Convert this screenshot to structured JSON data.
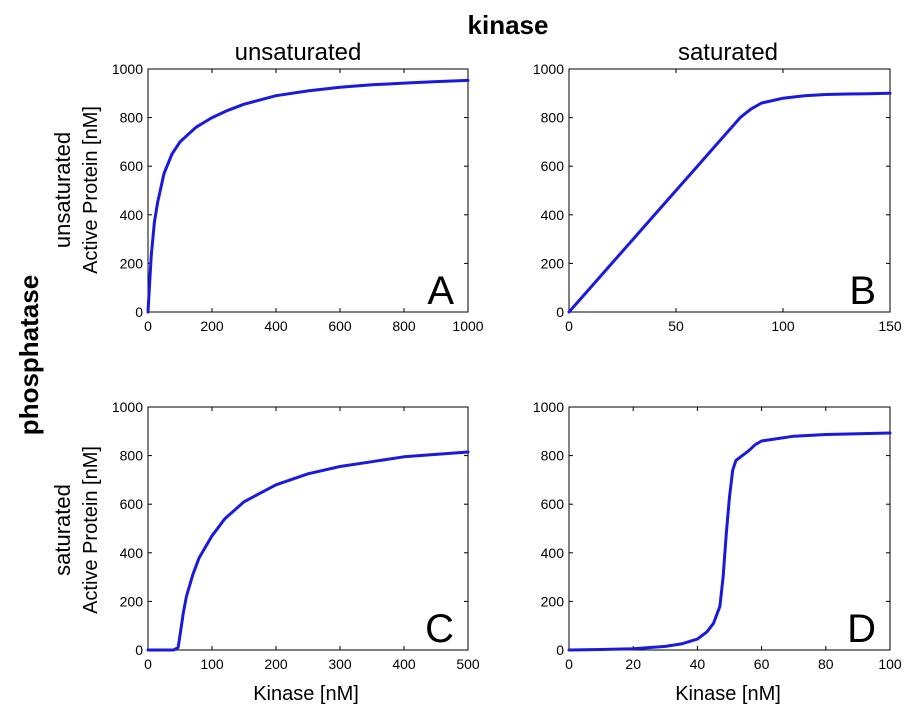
{
  "figure": {
    "col_header": "kinase",
    "row_header": "phosphatase",
    "col_labels": [
      "unsaturated",
      "saturated"
    ],
    "row_labels": [
      "unsaturated",
      "saturated"
    ],
    "ylabel": "Active Protein [nM]",
    "xlabel": "Kinase [nM]"
  },
  "colors": {
    "line": "#1a1adc",
    "axes": "#000000",
    "background": "#ffffff"
  },
  "chart_data": [
    {
      "type": "line",
      "panel_letter": "A",
      "xlim": [
        0,
        1000
      ],
      "ylim": [
        0,
        1000
      ],
      "xticks": [
        0,
        200,
        400,
        600,
        800,
        1000
      ],
      "yticks": [
        0,
        200,
        400,
        600,
        800,
        1000
      ],
      "series": [
        {
          "x": [
            0,
            10,
            20,
            30,
            50,
            75,
            100,
            150,
            200,
            250,
            300,
            400,
            500,
            600,
            700,
            800,
            900,
            1000
          ],
          "y": [
            0,
            230,
            370,
            450,
            570,
            650,
            700,
            760,
            800,
            830,
            855,
            890,
            910,
            925,
            935,
            942,
            948,
            953
          ]
        }
      ]
    },
    {
      "type": "line",
      "panel_letter": "B",
      "xlim": [
        0,
        150
      ],
      "ylim": [
        0,
        1000
      ],
      "xticks": [
        0,
        50,
        100,
        150
      ],
      "yticks": [
        0,
        200,
        400,
        600,
        800,
        1000
      ],
      "series": [
        {
          "x": [
            0,
            10,
            20,
            30,
            40,
            50,
            60,
            70,
            75,
            80,
            85,
            90,
            95,
            100,
            110,
            120,
            130,
            140,
            150
          ],
          "y": [
            0,
            100,
            200,
            300,
            400,
            500,
            600,
            700,
            750,
            800,
            835,
            860,
            870,
            880,
            890,
            895,
            897,
            898,
            900
          ]
        }
      ]
    },
    {
      "type": "line",
      "panel_letter": "C",
      "xlim": [
        0,
        500
      ],
      "ylim": [
        0,
        1000
      ],
      "xticks": [
        0,
        100,
        200,
        300,
        400,
        500
      ],
      "yticks": [
        0,
        200,
        400,
        600,
        800,
        1000
      ],
      "series": [
        {
          "x": [
            0,
            40,
            47,
            50,
            55,
            60,
            70,
            80,
            100,
            120,
            150,
            200,
            250,
            300,
            350,
            400,
            450,
            500
          ],
          "y": [
            0,
            0,
            10,
            60,
            150,
            220,
            310,
            380,
            470,
            540,
            610,
            680,
            725,
            755,
            775,
            795,
            805,
            815
          ]
        }
      ]
    },
    {
      "type": "line",
      "panel_letter": "D",
      "xlim": [
        0,
        100
      ],
      "ylim": [
        0,
        1000
      ],
      "xticks": [
        0,
        20,
        40,
        60,
        80,
        100
      ],
      "yticks": [
        0,
        200,
        400,
        600,
        800,
        1000
      ],
      "series": [
        {
          "x": [
            0,
            10,
            20,
            30,
            35,
            40,
            43,
            45,
            47,
            48,
            49,
            50,
            51,
            52,
            54,
            56,
            58,
            60,
            70,
            80,
            90,
            100
          ],
          "y": [
            0,
            2,
            5,
            15,
            25,
            45,
            75,
            110,
            180,
            300,
            480,
            630,
            740,
            780,
            800,
            820,
            845,
            860,
            880,
            887,
            890,
            893
          ]
        }
      ]
    }
  ]
}
